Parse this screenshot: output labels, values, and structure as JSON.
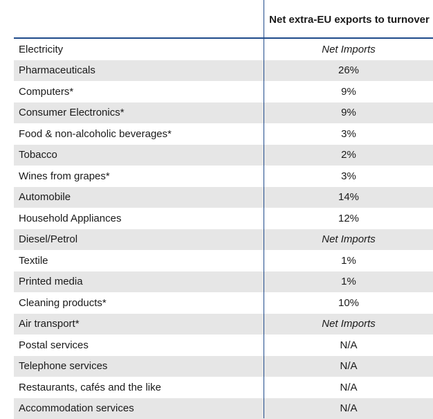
{
  "table": {
    "header": {
      "value_column": "Net extra-EU exports to turnover"
    },
    "rows": [
      {
        "label": "Electricity",
        "value": "Net Imports",
        "italic": true
      },
      {
        "label": "Pharmaceuticals",
        "value": "26%",
        "italic": false
      },
      {
        "label": "Computers*",
        "value": "9%",
        "italic": false
      },
      {
        "label": "Consumer Electronics*",
        "value": "9%",
        "italic": false
      },
      {
        "label": "Food & non-alcoholic beverages*",
        "value": "3%",
        "italic": false
      },
      {
        "label": "Tobacco",
        "value": "2%",
        "italic": false
      },
      {
        "label": "Wines from grapes*",
        "value": "3%",
        "italic": false
      },
      {
        "label": "Automobile",
        "value": "14%",
        "italic": false
      },
      {
        "label": "Household Appliances",
        "value": "12%",
        "italic": false
      },
      {
        "label": "Diesel/Petrol",
        "value": "Net Imports",
        "italic": true
      },
      {
        "label": "Textile",
        "value": "1%",
        "italic": false
      },
      {
        "label": "Printed media",
        "value": "1%",
        "italic": false
      },
      {
        "label": "Cleaning products*",
        "value": "10%",
        "italic": false
      },
      {
        "label": "Air transport*",
        "value": "Net Imports",
        "italic": true
      },
      {
        "label": "Postal services",
        "value": "N/A",
        "italic": false
      },
      {
        "label": "Telephone services",
        "value": "N/A",
        "italic": false
      },
      {
        "label": "Restaurants, cafés and the like",
        "value": "N/A",
        "italic": false
      },
      {
        "label": "Accommodation services",
        "value": "N/A",
        "italic": false
      }
    ]
  },
  "colors": {
    "rule": "#1f4a8a",
    "shade": "#e6e6e6"
  }
}
